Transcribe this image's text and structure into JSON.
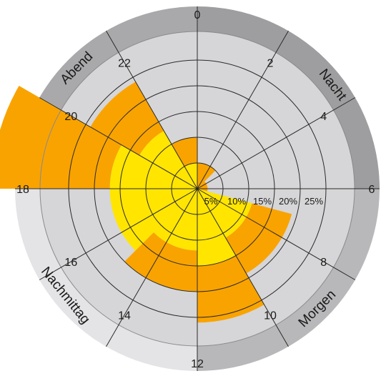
{
  "chart_data": {
    "type": "polar-bar",
    "title": "",
    "hour_labels": [
      "0",
      "2",
      "4",
      "6",
      "8",
      "10",
      "12",
      "14",
      "16",
      "18",
      "20",
      "22"
    ],
    "ring_labels": [
      "5%",
      "10%",
      "15%",
      "20%",
      "25%"
    ],
    "rmax": 25,
    "sectors": [
      {
        "from": 21,
        "to": 0,
        "yellow": 5,
        "orange": 5
      },
      {
        "from": 0,
        "to": 3,
        "yellow": 0,
        "orange": 5
      },
      {
        "from": 3,
        "to": 7,
        "yellow": 0,
        "orange": 2
      },
      {
        "from": 7,
        "to": 10,
        "yellow": 11,
        "orange": 8
      },
      {
        "from": 10,
        "to": 12,
        "yellow": 15,
        "orange": 11
      },
      {
        "from": 12,
        "to": 15,
        "yellow": 12,
        "orange": 8
      },
      {
        "from": 15,
        "to": 18,
        "yellow": 17,
        "orange": 0
      },
      {
        "from": 18,
        "to": 20,
        "yellow": 17,
        "orange": 23
      },
      {
        "from": 20,
        "to": 22,
        "yellow": 13,
        "orange": 11
      }
    ],
    "periods": [
      {
        "label": "Nacht",
        "from": 0,
        "to": 6,
        "color": "#9e9ea0"
      },
      {
        "label": "Morgen",
        "from": 6,
        "to": 12,
        "color": "#b8b8ba"
      },
      {
        "label": "Nachmittag",
        "from": 12,
        "to": 18,
        "color": "#e4e4e6"
      },
      {
        "label": "Abend",
        "from": 18,
        "to": 24,
        "color": "#a9a9ab"
      }
    ],
    "colors": {
      "yellow": "#ffe500",
      "orange": "#f9a300",
      "plot_bg": "#d6d6d8",
      "grid": "#2a2a2a"
    }
  }
}
